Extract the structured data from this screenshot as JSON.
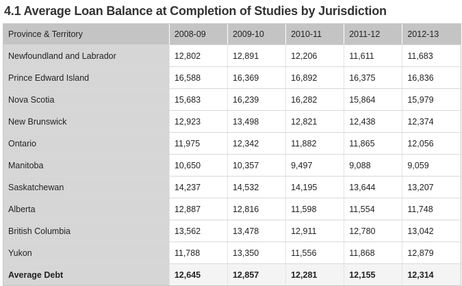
{
  "title": "4.1 Average Loan Balance at Completion of Studies by Jurisdiction",
  "table": {
    "headers": [
      "Province & Territory",
      "2008-09",
      "2009-10",
      "2010-11",
      "2011-12",
      "2012-13"
    ],
    "rows": [
      {
        "province": "Newfoundland and Labrador",
        "values": [
          "12,802",
          "12,891",
          "12,206",
          "11,611",
          "11,683"
        ]
      },
      {
        "province": "Prince Edward Island",
        "values": [
          "16,588",
          "16,369",
          "16,892",
          "16,375",
          "16,836"
        ]
      },
      {
        "province": "Nova Scotia",
        "values": [
          "15,683",
          "16,239",
          "16,282",
          "15,864",
          "15,979"
        ]
      },
      {
        "province": "New Brunswick",
        "values": [
          "12,923",
          "13,498",
          "12,821",
          "12,438",
          "12,374"
        ]
      },
      {
        "province": "Ontario",
        "values": [
          "11,975",
          "12,342",
          "11,882",
          "11,865",
          "12,056"
        ]
      },
      {
        "province": "Manitoba",
        "values": [
          "10,650",
          "10,357",
          "9,497",
          "9,088",
          "9,059"
        ]
      },
      {
        "province": "Saskatchewan",
        "values": [
          "14,237",
          "14,532",
          "14,195",
          "13,644",
          "13,207"
        ]
      },
      {
        "province": "Alberta",
        "values": [
          "12,887",
          "12,816",
          "11,598",
          "11,554",
          "11,748"
        ]
      },
      {
        "province": "British Columbia",
        "values": [
          "13,562",
          "13,478",
          "12,911",
          "12,780",
          "13,042"
        ]
      },
      {
        "province": "Yukon",
        "values": [
          "11,788",
          "13,350",
          "11,556",
          "11,868",
          "12,879"
        ]
      }
    ],
    "total": {
      "label": "Average Debt",
      "values": [
        "12,645",
        "12,857",
        "12,281",
        "12,155",
        "12,314"
      ]
    }
  }
}
